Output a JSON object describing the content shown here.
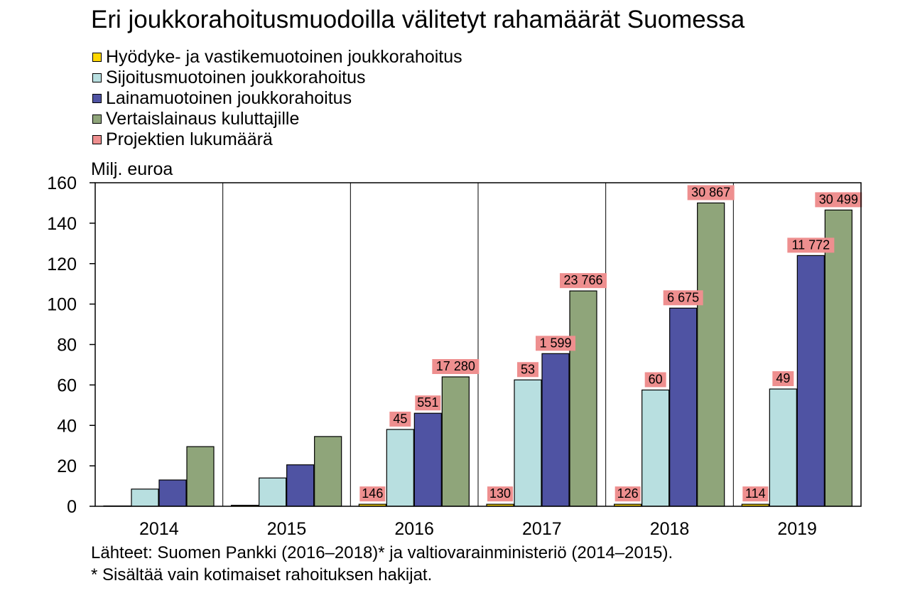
{
  "page": {
    "title": "Eri joukkorahoitusmuodoilla välitetyt rahamäärät Suomessa",
    "y_unit": "Milj. euroa",
    "source_line": "Lähteet: Suomen Pankki (2016–2018)* ja valtiovarainministeriö (2014–2015).",
    "footnote_line": "* Sisältää vain kotimaiset rahoituksen hakijat."
  },
  "chart_data": {
    "type": "bar",
    "title": "Eri joukkorahoitusmuodoilla välitetyt rahamäärät Suomessa",
    "ylabel": "Milj. euroa",
    "xlabel": "",
    "ylim": [
      0,
      160
    ],
    "yticks": [
      0,
      20,
      40,
      60,
      80,
      100,
      120,
      140,
      160
    ],
    "grid": "vertical lines between categories",
    "legend_position": "top-left",
    "categories": [
      "2014",
      "2015",
      "2016",
      "2017",
      "2018",
      "2019"
    ],
    "series": [
      {
        "name": "Hyödyke- ja vastikemuotoinen joukkorahoitus",
        "color": "#ffd700",
        "values": [
          0,
          0.5,
          1,
          1,
          1,
          1
        ],
        "count_labels": [
          "",
          "",
          "146",
          "130",
          "126",
          "114"
        ]
      },
      {
        "name": "Sijoitusmuotoinen joukkorahoitus",
        "color": "#b8dfe0",
        "values": [
          8.5,
          14,
          38,
          62.5,
          57.5,
          58
        ],
        "count_labels": [
          "",
          "",
          "45",
          "53",
          "60",
          "49"
        ]
      },
      {
        "name": "Lainamuotoinen joukkorahoitus",
        "color": "#4f53a3",
        "values": [
          13,
          20.5,
          46,
          75.5,
          98,
          124
        ],
        "count_labels": [
          "",
          "",
          "551",
          "1 599",
          "6 675",
          "11 772"
        ]
      },
      {
        "name": "Vertaislainaus kuluttajille",
        "color": "#8fa57a",
        "values": [
          29.5,
          34.5,
          64,
          106.5,
          150,
          146.5
        ],
        "count_labels": [
          "",
          "",
          "17 280",
          "23 766",
          "30 867",
          "30 499"
        ]
      }
    ],
    "label_legend": {
      "name": "Projektien lukumäärä",
      "color": "#ee8f8f"
    }
  }
}
